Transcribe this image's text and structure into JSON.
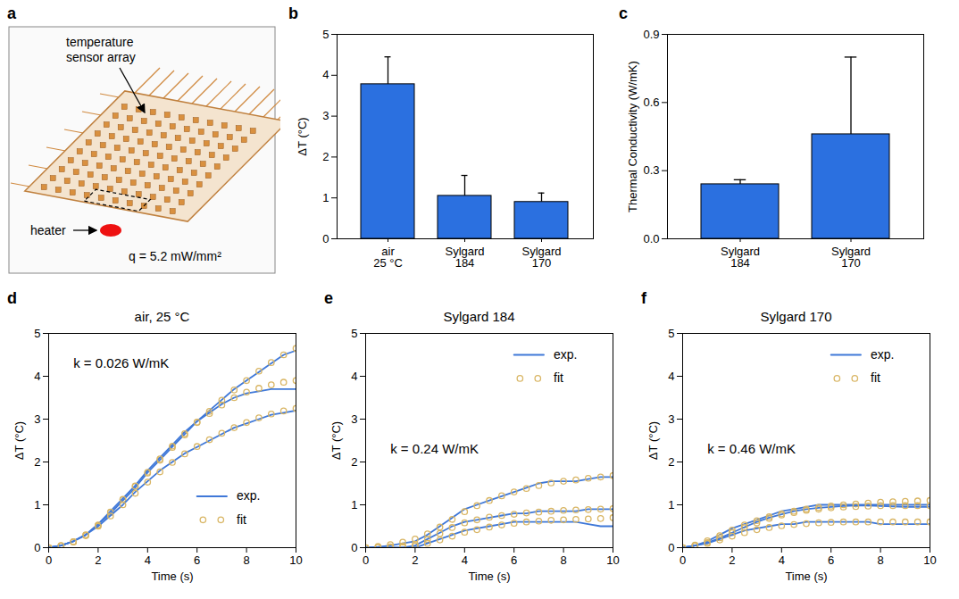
{
  "panel_a": {
    "panel": "a",
    "type": "diagram",
    "sensor_label": "temperature sensor array",
    "heater_label": "heater",
    "flux_label": "q = 5.2 mW/mm²"
  },
  "chart_data": [
    {
      "panel": "b",
      "type": "bar",
      "categories": [
        "air 25 °C",
        "Sylgard 184",
        "Sylgard 170"
      ],
      "values": [
        3.78,
        1.05,
        0.9
      ],
      "error": [
        0.67,
        0.5,
        0.22
      ],
      "color": "#2b70e0",
      "ylabel": "ΔT (°C)",
      "ylim": [
        0,
        5
      ],
      "yticks": [
        0,
        1,
        2,
        3,
        4,
        5
      ]
    },
    {
      "panel": "c",
      "type": "bar",
      "categories": [
        "Sylgard 184",
        "Sylgard 170"
      ],
      "values": [
        0.24,
        0.46
      ],
      "error": [
        0.02,
        0.34
      ],
      "color": "#2b70e0",
      "ylabel": "Thermal Conductivity (W/mK)",
      "ylim": [
        0,
        0.9
      ],
      "yticks": [
        {
          "value": 0,
          "label": "0.0"
        },
        0.3,
        0.6,
        0.9
      ]
    },
    {
      "panel": "d",
      "type": "line",
      "title": "air, 25 °C",
      "annotation": "k = 0.026 W/mK",
      "xlabel": "Time (s)",
      "ylabel": "ΔT (°C)",
      "xlim": [
        0,
        10
      ],
      "xticks": [
        0,
        2,
        4,
        6,
        8,
        10
      ],
      "ylim": [
        0,
        5
      ],
      "yticks": [
        0,
        1,
        2,
        3,
        4,
        5
      ],
      "legend": "bottom-right",
      "x": [
        0,
        0.5,
        1,
        1.5,
        2,
        2.5,
        3,
        3.5,
        4,
        4.5,
        5,
        5.5,
        6,
        6.5,
        7,
        7.5,
        8,
        8.5,
        9,
        9.5,
        10
      ],
      "series": [
        {
          "name": "exp.",
          "color": "#3f78d8",
          "values": [
            0,
            0.05,
            0.15,
            0.3,
            0.55,
            0.8,
            1.1,
            1.4,
            1.75,
            2.05,
            2.35,
            2.65,
            2.95,
            3.2,
            3.45,
            3.7,
            3.9,
            4.1,
            4.3,
            4.5,
            4.6
          ]
        },
        {
          "name": "fit",
          "type": "scatter",
          "marker": "circle",
          "color": "#d9b665",
          "values": [
            0,
            0.04,
            0.13,
            0.28,
            0.52,
            0.82,
            1.12,
            1.43,
            1.74,
            2.04,
            2.34,
            2.63,
            2.92,
            3.18,
            3.44,
            3.68,
            3.9,
            4.12,
            4.32,
            4.5,
            4.65
          ]
        },
        {
          "name": "exp.",
          "color": "#3f78d8",
          "values": [
            0,
            0.05,
            0.15,
            0.3,
            0.55,
            0.85,
            1.15,
            1.45,
            1.8,
            2.1,
            2.4,
            2.7,
            2.95,
            3.15,
            3.35,
            3.5,
            3.6,
            3.65,
            3.7,
            3.7,
            3.7
          ]
        },
        {
          "name": "fit",
          "type": "scatter",
          "marker": "circle",
          "color": "#d9b665",
          "values": [
            0,
            0.05,
            0.14,
            0.29,
            0.53,
            0.83,
            1.13,
            1.44,
            1.76,
            2.07,
            2.37,
            2.66,
            2.93,
            3.13,
            3.33,
            3.5,
            3.63,
            3.72,
            3.8,
            3.86,
            3.9
          ]
        },
        {
          "name": "exp.",
          "color": "#3f78d8",
          "values": [
            0,
            0.05,
            0.15,
            0.3,
            0.5,
            0.75,
            1.0,
            1.3,
            1.55,
            1.8,
            2.0,
            2.2,
            2.35,
            2.5,
            2.65,
            2.8,
            2.9,
            3.0,
            3.1,
            3.15,
            3.2
          ]
        },
        {
          "name": "fit",
          "type": "scatter",
          "marker": "circle",
          "color": "#d9b665",
          "values": [
            0,
            0.04,
            0.14,
            0.3,
            0.5,
            0.74,
            1.0,
            1.27,
            1.53,
            1.77,
            1.99,
            2.19,
            2.36,
            2.52,
            2.67,
            2.8,
            2.92,
            3.03,
            3.12,
            3.19,
            3.25
          ]
        }
      ]
    },
    {
      "panel": "e",
      "type": "line",
      "title": "Sylgard 184",
      "annotation": "k = 0.24 W/mK",
      "xlabel": "Time (s)",
      "ylabel": "ΔT (°C)",
      "xlim": [
        0,
        10
      ],
      "xticks": [
        0,
        2,
        4,
        6,
        8,
        10
      ],
      "ylim": [
        0,
        5
      ],
      "yticks": [
        0,
        1,
        2,
        3,
        4,
        5
      ],
      "legend": "top-right",
      "x": [
        0,
        0.5,
        1,
        1.5,
        2,
        2.5,
        3,
        3.5,
        4,
        4.5,
        5,
        5.5,
        6,
        6.5,
        7,
        7.5,
        8,
        8.5,
        9,
        9.5,
        10
      ],
      "series": [
        {
          "name": "exp.",
          "color": "#3f78d8",
          "values": [
            0,
            0.02,
            0.05,
            0.1,
            0.15,
            0.3,
            0.5,
            0.7,
            0.9,
            1.0,
            1.1,
            1.2,
            1.3,
            1.4,
            1.5,
            1.55,
            1.55,
            1.55,
            1.6,
            1.65,
            1.65
          ]
        },
        {
          "name": "fit",
          "type": "scatter",
          "marker": "circle",
          "color": "#d9b665",
          "values": [
            0,
            0.03,
            0.07,
            0.13,
            0.2,
            0.32,
            0.48,
            0.66,
            0.84,
            0.98,
            1.1,
            1.21,
            1.3,
            1.38,
            1.45,
            1.51,
            1.55,
            1.58,
            1.62,
            1.65,
            1.68
          ]
        },
        {
          "name": "exp.",
          "color": "#3f78d8",
          "values": [
            0,
            0,
            0,
            0,
            0.05,
            0.2,
            0.35,
            0.5,
            0.6,
            0.65,
            0.7,
            0.75,
            0.8,
            0.8,
            0.85,
            0.85,
            0.85,
            0.85,
            0.9,
            0.9,
            0.9
          ]
        },
        {
          "name": "fit",
          "type": "scatter",
          "marker": "circle",
          "color": "#d9b665",
          "values": [
            0,
            0.01,
            0.02,
            0.04,
            0.08,
            0.19,
            0.33,
            0.47,
            0.58,
            0.65,
            0.71,
            0.75,
            0.78,
            0.81,
            0.83,
            0.85,
            0.87,
            0.88,
            0.89,
            0.9,
            0.91
          ]
        },
        {
          "name": "exp.",
          "color": "#3f78d8",
          "values": [
            0,
            0,
            0,
            0,
            0,
            0.1,
            0.2,
            0.3,
            0.4,
            0.45,
            0.5,
            0.55,
            0.6,
            0.6,
            0.6,
            0.6,
            0.6,
            0.6,
            0.55,
            0.5,
            0.5
          ]
        },
        {
          "name": "fit",
          "type": "scatter",
          "marker": "circle",
          "color": "#d9b665",
          "values": [
            0,
            0.01,
            0.01,
            0.02,
            0.04,
            0.1,
            0.18,
            0.27,
            0.36,
            0.42,
            0.48,
            0.53,
            0.57,
            0.6,
            0.62,
            0.64,
            0.65,
            0.66,
            0.67,
            0.68,
            0.7
          ]
        }
      ]
    },
    {
      "panel": "f",
      "type": "line",
      "title": "Sylgard 170",
      "annotation": "k = 0.46 W/mK",
      "xlabel": "Time (s)",
      "ylabel": "ΔT (°C)",
      "xlim": [
        0,
        10
      ],
      "xticks": [
        0,
        2,
        4,
        6,
        8,
        10
      ],
      "ylim": [
        0,
        5
      ],
      "yticks": [
        0,
        1,
        2,
        3,
        4,
        5
      ],
      "legend": "top-right",
      "x": [
        0,
        0.5,
        1,
        1.5,
        2,
        2.5,
        3,
        3.5,
        4,
        4.5,
        5,
        5.5,
        6,
        6.5,
        7,
        7.5,
        8,
        8.5,
        9,
        9.5,
        10
      ],
      "series": [
        {
          "name": "exp.",
          "color": "#3f78d8",
          "values": [
            0,
            0.05,
            0.15,
            0.3,
            0.45,
            0.55,
            0.65,
            0.75,
            0.85,
            0.9,
            0.95,
            1.0,
            1.0,
            1.0,
            1.0,
            1.0,
            1.0,
            1.0,
            1.0,
            1.0,
            1.0
          ]
        },
        {
          "name": "fit",
          "type": "scatter",
          "marker": "circle",
          "color": "#d9b665",
          "values": [
            0,
            0.06,
            0.16,
            0.28,
            0.41,
            0.53,
            0.63,
            0.72,
            0.79,
            0.85,
            0.9,
            0.94,
            0.97,
            1.0,
            1.02,
            1.04,
            1.06,
            1.07,
            1.08,
            1.09,
            1.1
          ]
        },
        {
          "name": "exp.",
          "color": "#3f78d8",
          "values": [
            0,
            0.05,
            0.12,
            0.22,
            0.35,
            0.48,
            0.6,
            0.7,
            0.78,
            0.85,
            0.9,
            0.93,
            0.95,
            0.97,
            0.98,
            0.98,
            0.97,
            0.96,
            0.95,
            0.95,
            0.95
          ]
        },
        {
          "name": "fit",
          "type": "scatter",
          "marker": "circle",
          "color": "#d9b665",
          "values": [
            0,
            0.05,
            0.12,
            0.23,
            0.35,
            0.47,
            0.58,
            0.68,
            0.76,
            0.82,
            0.87,
            0.9,
            0.93,
            0.95,
            0.96,
            0.97,
            0.98,
            0.98,
            0.98,
            0.98,
            0.98
          ]
        },
        {
          "name": "exp.",
          "color": "#3f78d8",
          "values": [
            0,
            0.05,
            0.1,
            0.2,
            0.3,
            0.4,
            0.45,
            0.5,
            0.55,
            0.55,
            0.6,
            0.6,
            0.6,
            0.6,
            0.6,
            0.6,
            0.55,
            0.55,
            0.55,
            0.55,
            0.55
          ]
        },
        {
          "name": "fit",
          "type": "scatter",
          "marker": "circle",
          "color": "#d9b665",
          "values": [
            0,
            0.04,
            0.1,
            0.18,
            0.27,
            0.35,
            0.42,
            0.47,
            0.51,
            0.54,
            0.56,
            0.58,
            0.59,
            0.6,
            0.6,
            0.6,
            0.6,
            0.6,
            0.6,
            0.6,
            0.6
          ]
        }
      ]
    }
  ]
}
